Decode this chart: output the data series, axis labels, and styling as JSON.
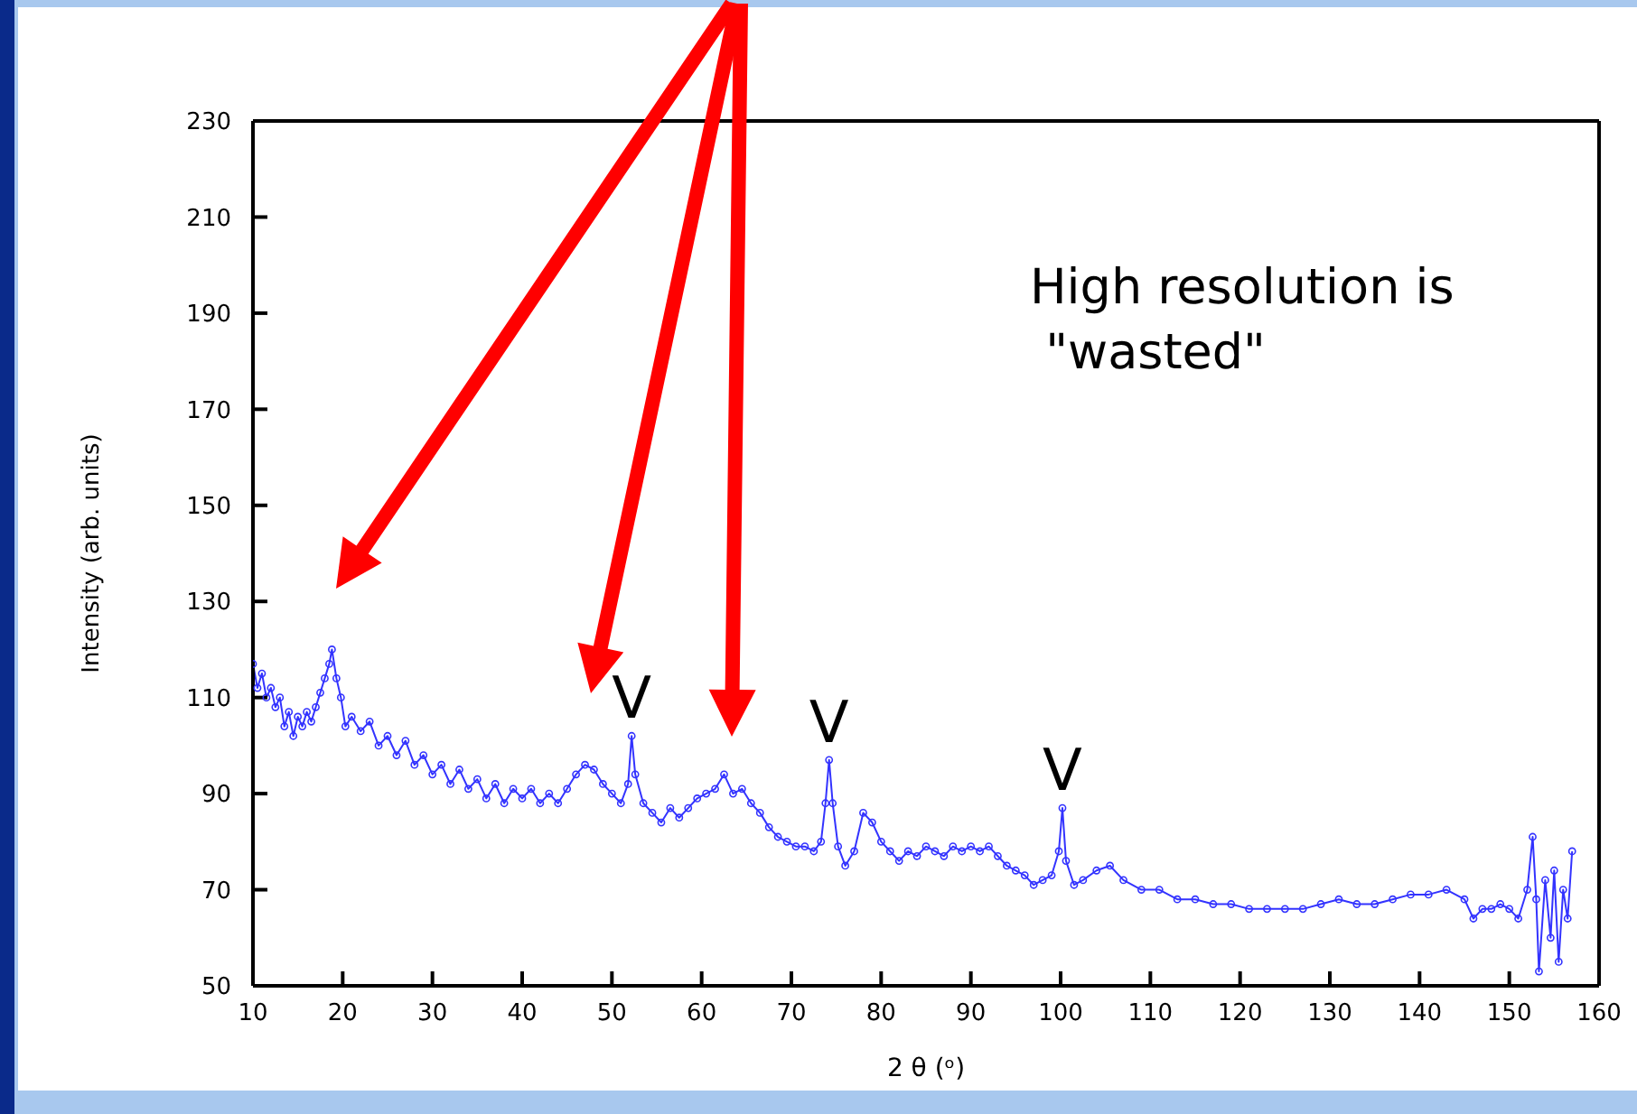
{
  "chart_data": {
    "type": "line",
    "xlabel": "2 θ (ᵒ)",
    "ylabel": "Intensity (arb. units)",
    "xlim": [
      10,
      160
    ],
    "xticks": [
      10,
      20,
      30,
      40,
      50,
      60,
      70,
      80,
      90,
      100,
      110,
      120,
      130,
      140,
      150,
      160
    ],
    "ylim": [
      50,
      230
    ],
    "yticks": [
      50,
      70,
      90,
      110,
      130,
      150,
      170,
      190,
      210,
      230
    ],
    "marker": "circle",
    "line_style": "solid",
    "annotations": [
      {
        "text": "V",
        "x": 52.2,
        "y": 102
      },
      {
        "text": "V",
        "x": 74.2,
        "y": 97
      },
      {
        "text": "V",
        "x": 100.2,
        "y": 87
      },
      "High resolution is \n \"wasted\""
    ],
    "series": [
      {
        "color": "#3333ff",
        "x": [
          10,
          10.5,
          11,
          11.5,
          12,
          12.5,
          13,
          13.5,
          14,
          14.5,
          15,
          15.5,
          16,
          16.5,
          17,
          17.5,
          18,
          18.5,
          18.8,
          19.3,
          19.8,
          20.3,
          21,
          22,
          23,
          24,
          25,
          26,
          27,
          28,
          29,
          30,
          31,
          32,
          33,
          34,
          35,
          36,
          37,
          38,
          39,
          40,
          41,
          42,
          43,
          44,
          45,
          46,
          47,
          48,
          49,
          50,
          51,
          51.8,
          52.2,
          52.6,
          53.5,
          54.5,
          55.5,
          56.5,
          57.5,
          58.5,
          59.5,
          60.5,
          61.5,
          62.5,
          63.5,
          64.5,
          65.5,
          66.5,
          67.5,
          68.5,
          69.5,
          70.5,
          71.5,
          72.5,
          73.3,
          73.8,
          74.2,
          74.6,
          75.2,
          76,
          77,
          78,
          79,
          80,
          81,
          82,
          83,
          84,
          85,
          86,
          87,
          88,
          89,
          90,
          91,
          92,
          93,
          94,
          95,
          96,
          97,
          98,
          99,
          99.8,
          100.2,
          100.6,
          101.5,
          102.5,
          104,
          105.5,
          107,
          109,
          111,
          113,
          115,
          117,
          119,
          121,
          123,
          125,
          127,
          129,
          131,
          133,
          135,
          137,
          139,
          141,
          143,
          145,
          146,
          147,
          148,
          149,
          150,
          151,
          152,
          152.6,
          153,
          153.3,
          154,
          154.6,
          155,
          155.5,
          156,
          156.5,
          157
        ],
        "values": [
          117,
          112,
          115,
          110,
          112,
          108,
          110,
          104,
          107,
          102,
          106,
          104,
          107,
          105,
          108,
          111,
          114,
          117,
          120,
          114,
          110,
          104,
          106,
          103,
          105,
          100,
          102,
          98,
          101,
          96,
          98,
          94,
          96,
          92,
          95,
          91,
          93,
          89,
          92,
          88,
          91,
          89,
          91,
          88,
          90,
          88,
          91,
          94,
          96,
          95,
          92,
          90,
          88,
          92,
          102,
          94,
          88,
          86,
          84,
          87,
          85,
          87,
          89,
          90,
          91,
          94,
          90,
          91,
          88,
          86,
          83,
          81,
          80,
          79,
          79,
          78,
          80,
          88,
          97,
          88,
          79,
          75,
          78,
          86,
          84,
          80,
          78,
          76,
          78,
          77,
          79,
          78,
          77,
          79,
          78,
          79,
          78,
          79,
          77,
          75,
          74,
          73,
          71,
          72,
          73,
          78,
          87,
          76,
          71,
          72,
          74,
          75,
          72,
          70,
          70,
          68,
          68,
          67,
          67,
          66,
          66,
          66,
          66,
          67,
          68,
          67,
          67,
          68,
          69,
          69,
          70,
          68,
          64,
          66,
          66,
          67,
          66,
          64,
          70,
          81,
          68,
          53,
          72,
          60,
          74,
          55,
          70,
          64,
          78
        ]
      }
    ]
  }
}
